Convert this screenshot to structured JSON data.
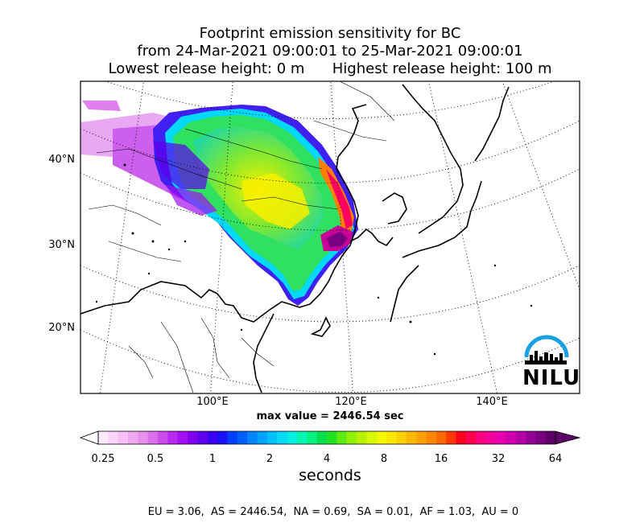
{
  "title": {
    "line1": "Footprint emission sensitivity for BC",
    "line2": "from 24-Mar-2021 09:00:01 to 25-Mar-2021 09:00:01",
    "line3": "Lowest release height: 0 m      Highest release height: 100 m"
  },
  "map": {
    "lat_labels": [
      "40°N",
      "30°N",
      "20°N"
    ],
    "lon_labels": [
      "100°E",
      "120°E",
      "140°E"
    ]
  },
  "max_value_text": "max value = 2446.54 sec",
  "colorbar": {
    "ticks": [
      "0.25",
      "0.5",
      "1",
      "2",
      "4",
      "8",
      "16",
      "32",
      "64"
    ],
    "unit_label": "seconds",
    "colors": [
      "#ffeaff",
      "#fcd4fc",
      "#f8bff8",
      "#f0a8f0",
      "#e890ec",
      "#dc70ec",
      "#cc4cec",
      "#b828ee",
      "#a010f0",
      "#8000ee",
      "#5c00ee",
      "#3c00f0",
      "#1c10f4",
      "#0040ff",
      "#0060ff",
      "#0084ff",
      "#00a4ff",
      "#00c0ff",
      "#00d8f8",
      "#00eee0",
      "#00f4b4",
      "#00f080",
      "#00e050",
      "#20e020",
      "#60ea10",
      "#90f000",
      "#b8f400",
      "#d8f800",
      "#f4f800",
      "#ffe800",
      "#ffd000",
      "#ffb800",
      "#ffa000",
      "#ff8800",
      "#ff6800",
      "#ff3a00",
      "#ff0020",
      "#ff0050",
      "#ff0080",
      "#f4009c",
      "#e800b0",
      "#d000b0",
      "#b400a8",
      "#940098",
      "#780080",
      "#5c0068"
    ]
  },
  "summary": "EU = 3.06,  AS = 2446.54,  NA = 0.69,  SA = 0.01,  AF = 1.03,  AU = 0",
  "logo": {
    "text": "NILU",
    "arc_color": "#1aa0e0"
  }
}
